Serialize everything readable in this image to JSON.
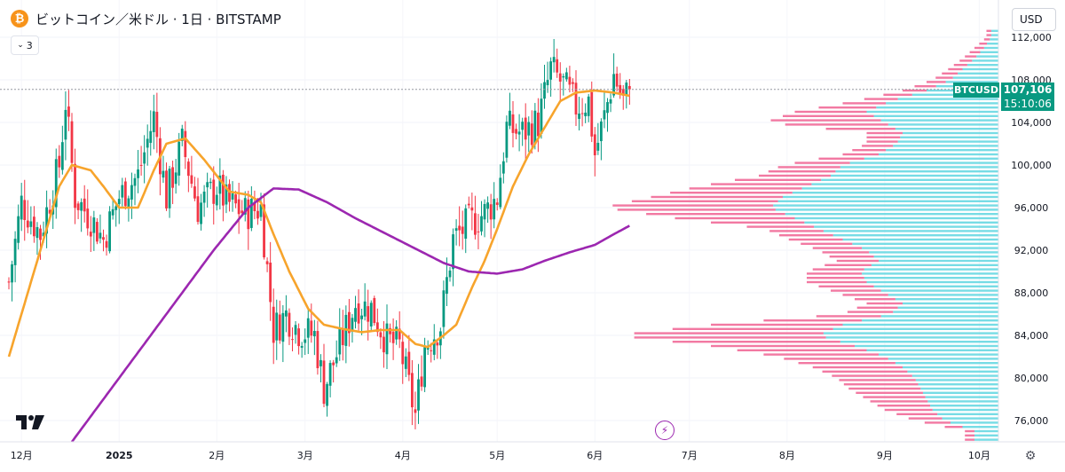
{
  "header": {
    "title": "ビットコイン／米ドル · 1日 · BITSTAMP",
    "btc_symbol": "₿",
    "indicator_count": "3",
    "currency": "USD"
  },
  "price_label": {
    "symbol": "BTCUSD",
    "price": "107,106",
    "countdown": "15:10:06"
  },
  "colors": {
    "up": "#089981",
    "down": "#f23645",
    "ma_fast": "#f7a42c",
    "ma_slow": "#9c27b0",
    "vp_up": "#5fd6e0",
    "vp_down": "#f06292"
  },
  "icons": {
    "settings": "gear-icon",
    "replay": "lightning-icon",
    "logo": "tradingview-logo"
  },
  "chart_data": {
    "type": "candlestick",
    "title": "ビットコイン／米ドル · 1日 · BITSTAMP",
    "ylim": [
      74000,
      113000
    ],
    "y_ticks": [
      76000,
      80000,
      84000,
      88000,
      92000,
      96000,
      100000,
      104000,
      108000,
      112000
    ],
    "y_tick_labels": [
      "76,000",
      "80,000",
      "84,000",
      "88,000",
      "92,000",
      "96,000",
      "100,000",
      "104,000",
      "108,000",
      "112,000"
    ],
    "x_ticks": [
      {
        "label": "12月",
        "day": 4
      },
      {
        "label": "2025",
        "day": 35
      },
      {
        "label": "2月",
        "day": 66
      },
      {
        "label": "3月",
        "day": 94
      },
      {
        "label": "4月",
        "day": 125
      },
      {
        "label": "5月",
        "day": 155
      },
      {
        "label": "6月",
        "day": 186
      },
      {
        "label": "7月",
        "day": 216
      },
      {
        "label": "8月",
        "day": 247
      },
      {
        "label": "9月",
        "day": 278
      },
      {
        "label": "10月",
        "day": 308
      }
    ],
    "last_price": 107106,
    "close_anchors": [
      [
        0,
        89000
      ],
      [
        4,
        96500
      ],
      [
        10,
        93500
      ],
      [
        16,
        100000
      ],
      [
        18,
        106000
      ],
      [
        21,
        97000
      ],
      [
        26,
        95000
      ],
      [
        30,
        93000
      ],
      [
        35,
        97000
      ],
      [
        41,
        99000
      ],
      [
        46,
        104500
      ],
      [
        50,
        97000
      ],
      [
        55,
        102000
      ],
      [
        60,
        96000
      ],
      [
        66,
        98000
      ],
      [
        69,
        96500
      ],
      [
        75,
        95500
      ],
      [
        80,
        96000
      ],
      [
        84,
        84500
      ],
      [
        88,
        86000
      ],
      [
        92,
        84500
      ],
      [
        97,
        84000
      ],
      [
        100,
        79000
      ],
      [
        105,
        83000
      ],
      [
        110,
        87000
      ],
      [
        115,
        86500
      ],
      [
        120,
        83500
      ],
      [
        124,
        83000
      ],
      [
        129,
        76500
      ],
      [
        132,
        83000
      ],
      [
        137,
        85000
      ],
      [
        141,
        93000
      ],
      [
        146,
        94500
      ],
      [
        151,
        95500
      ],
      [
        155,
        97000
      ],
      [
        158,
        103500
      ],
      [
        163,
        103000
      ],
      [
        168,
        104000
      ],
      [
        172,
        109000
      ],
      [
        176,
        107500
      ],
      [
        180,
        105500
      ],
      [
        184,
        106000
      ],
      [
        186,
        101000
      ],
      [
        189,
        104500
      ],
      [
        192,
        108500
      ],
      [
        195,
        106000
      ],
      [
        197,
        107106
      ]
    ],
    "moving_averages": [
      {
        "name": "MA fast",
        "color": "#f7a42c",
        "points": [
          [
            0,
            82000
          ],
          [
            10,
            92000
          ],
          [
            16,
            98000
          ],
          [
            20,
            100000
          ],
          [
            26,
            99500
          ],
          [
            30,
            98000
          ],
          [
            35,
            96000
          ],
          [
            41,
            96000
          ],
          [
            46,
            99500
          ],
          [
            50,
            102000
          ],
          [
            56,
            102500
          ],
          [
            62,
            100500
          ],
          [
            66,
            99000
          ],
          [
            70,
            97500
          ],
          [
            76,
            97200
          ],
          [
            80,
            96500
          ],
          [
            84,
            93500
          ],
          [
            89,
            90000
          ],
          [
            95,
            86500
          ],
          [
            100,
            85000
          ],
          [
            106,
            84600
          ],
          [
            112,
            84300
          ],
          [
            118,
            84500
          ],
          [
            124,
            84500
          ],
          [
            129,
            83200
          ],
          [
            133,
            82900
          ],
          [
            138,
            84000
          ],
          [
            142,
            85000
          ],
          [
            147,
            88500
          ],
          [
            151,
            91000
          ],
          [
            155,
            94000
          ],
          [
            160,
            98000
          ],
          [
            165,
            101000
          ],
          [
            170,
            103500
          ],
          [
            175,
            106000
          ],
          [
            180,
            106800
          ],
          [
            186,
            107000
          ],
          [
            192,
            106800
          ],
          [
            197,
            106500
          ]
        ]
      },
      {
        "name": "MA slow",
        "color": "#9c27b0",
        "points": [
          [
            20,
            74000
          ],
          [
            35,
            80000
          ],
          [
            50,
            86000
          ],
          [
            65,
            92000
          ],
          [
            76,
            96000
          ],
          [
            84,
            97800
          ],
          [
            92,
            97700
          ],
          [
            101,
            96500
          ],
          [
            110,
            95000
          ],
          [
            120,
            93500
          ],
          [
            130,
            92000
          ],
          [
            138,
            90800
          ],
          [
            146,
            90000
          ],
          [
            155,
            89800
          ],
          [
            163,
            90200
          ],
          [
            170,
            91000
          ],
          [
            178,
            91800
          ],
          [
            186,
            92500
          ],
          [
            192,
            93500
          ],
          [
            197,
            94300
          ]
        ]
      }
    ],
    "volume_profile": {
      "price_step": 400,
      "rows": [
        [
          75000,
          20,
          8
        ],
        [
          76000,
          45,
          25
        ],
        [
          77000,
          55,
          40
        ],
        [
          78000,
          60,
          50
        ],
        [
          79000,
          65,
          60
        ],
        [
          80000,
          70,
          65
        ],
        [
          81000,
          80,
          75
        ],
        [
          82000,
          95,
          90
        ],
        [
          83000,
          120,
          120
        ],
        [
          84000,
          150,
          170
        ],
        [
          85000,
          130,
          110
        ],
        [
          86000,
          90,
          40
        ],
        [
          87000,
          80,
          30
        ],
        [
          88000,
          95,
          40
        ],
        [
          89000,
          110,
          50
        ],
        [
          90000,
          115,
          45
        ],
        [
          91000,
          100,
          35
        ],
        [
          92000,
          110,
          40
        ],
        [
          93000,
          130,
          45
        ],
        [
          94000,
          150,
          45
        ],
        [
          95000,
          170,
          100
        ],
        [
          96000,
          190,
          140
        ],
        [
          97000,
          180,
          110
        ],
        [
          98000,
          160,
          90
        ],
        [
          99000,
          140,
          60
        ],
        [
          100000,
          130,
          50
        ],
        [
          101000,
          100,
          30
        ],
        [
          102000,
          85,
          25
        ],
        [
          103000,
          80,
          30
        ],
        [
          104000,
          95,
          100
        ],
        [
          105000,
          110,
          60
        ],
        [
          106000,
          90,
          30
        ],
        [
          107000,
          60,
          20
        ],
        [
          108000,
          40,
          15
        ],
        [
          109000,
          30,
          12
        ],
        [
          110000,
          20,
          10
        ],
        [
          111000,
          12,
          8
        ],
        [
          112000,
          6,
          4
        ]
      ]
    }
  }
}
